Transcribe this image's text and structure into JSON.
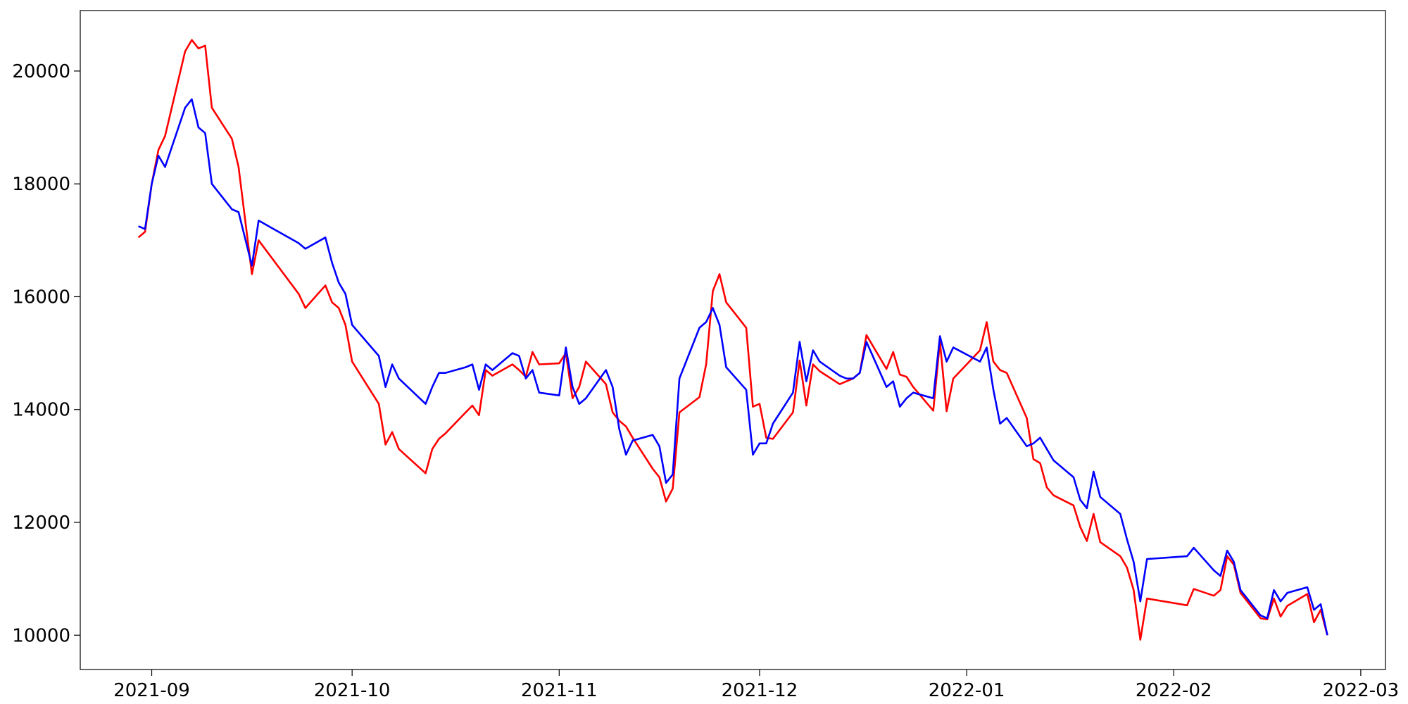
{
  "chart_data": {
    "type": "line",
    "x": [
      18869,
      18870,
      18871,
      18872,
      18873,
      18876,
      18877,
      18878,
      18879,
      18880,
      18883,
      18884,
      18886,
      18887,
      18893,
      18894,
      18897,
      18898,
      18899,
      18900,
      18901,
      18905,
      18906,
      18907,
      18908,
      18912,
      18913,
      18914,
      18915,
      18918,
      18919,
      18920,
      18921,
      18922,
      18925,
      18926,
      18927,
      18928,
      18929,
      18932,
      18933,
      18934,
      18935,
      18936,
      18939,
      18940,
      18941,
      18942,
      18943,
      18946,
      18947,
      18948,
      18949,
      18950,
      18953,
      18954,
      18955,
      18956,
      18957,
      18960,
      18961,
      18962,
      18963,
      18964,
      18967,
      18968,
      18969,
      18970,
      18971,
      18974,
      18975,
      18976,
      18977,
      18978,
      18981,
      18982,
      18983,
      18984,
      18985,
      18988,
      18989,
      18990,
      18991,
      18995,
      18996,
      18997,
      18998,
      18999,
      19002,
      19003,
      19004,
      19005,
      19006,
      19009,
      19010,
      19011,
      19012,
      19013,
      19016,
      19017,
      19018,
      19019,
      19020,
      19026,
      19027,
      19030,
      19031,
      19032,
      19033,
      19034,
      19037,
      19038,
      19039,
      19040,
      19041,
      19044,
      19045,
      19046,
      19047
    ],
    "series": [
      {
        "color": "#ff0000",
        "values": [
          17050,
          17150,
          18000,
          18600,
          18850,
          20350,
          20550,
          20400,
          20450,
          19350,
          18800,
          18300,
          16400,
          17000,
          16050,
          15800,
          16200,
          15900,
          15800,
          15500,
          14850,
          14100,
          13380,
          13600,
          13300,
          12870,
          13300,
          13480,
          13580,
          13950,
          14070,
          13900,
          14700,
          14600,
          14800,
          14700,
          14580,
          15020,
          14800,
          14820,
          15000,
          14200,
          14400,
          14850,
          14450,
          13950,
          13800,
          13700,
          13500,
          12950,
          12800,
          12370,
          12600,
          13950,
          14220,
          14800,
          16100,
          16400,
          15900,
          15450,
          14050,
          14100,
          13500,
          13480,
          13950,
          14870,
          14070,
          14800,
          14680,
          14450,
          14500,
          14550,
          14650,
          15320,
          14720,
          15020,
          14620,
          14580,
          14400,
          13980,
          15200,
          13970,
          14550,
          15050,
          15550,
          14850,
          14700,
          14650,
          13850,
          13120,
          13050,
          12620,
          12480,
          12300,
          11920,
          11670,
          12150,
          11650,
          11400,
          11200,
          10800,
          9920,
          10650,
          10530,
          10820,
          10700,
          10800,
          11400,
          11250,
          10750,
          10300,
          10280,
          10650,
          10330,
          10520,
          10730,
          10230,
          10450,
          10000
        ]
      },
      {
        "color": "#0000ff",
        "values": [
          17250,
          17200,
          18000,
          18500,
          18300,
          19350,
          19500,
          19000,
          18900,
          18000,
          17550,
          17500,
          16550,
          17350,
          16950,
          16850,
          17050,
          16600,
          16250,
          16050,
          15500,
          14950,
          14400,
          14800,
          14550,
          14100,
          14400,
          14650,
          14650,
          14750,
          14800,
          14350,
          14800,
          14700,
          15000,
          14950,
          14550,
          14700,
          14300,
          14250,
          15100,
          14400,
          14100,
          14200,
          14700,
          14400,
          13650,
          13200,
          13450,
          13550,
          13350,
          12700,
          12850,
          14550,
          15450,
          15550,
          15800,
          15500,
          14750,
          14350,
          13200,
          13400,
          13400,
          13750,
          14300,
          15200,
          14500,
          15050,
          14850,
          14600,
          14550,
          14550,
          14650,
          15200,
          14400,
          14500,
          14050,
          14200,
          14300,
          14200,
          15300,
          14850,
          15100,
          14850,
          15100,
          14350,
          13750,
          13850,
          13350,
          13400,
          13500,
          13300,
          13100,
          12800,
          12400,
          12250,
          12900,
          12450,
          12150,
          11700,
          11300,
          10600,
          11350,
          11400,
          11550,
          11150,
          11050,
          11500,
          11300,
          10800,
          10350,
          10300,
          10800,
          10600,
          10750,
          10850,
          10450,
          10550,
          10000
        ]
      }
    ],
    "xlim": [
      18860.3,
      19055.7
    ],
    "xticks": [
      {
        "value": 18871,
        "label": "2021-09"
      },
      {
        "value": 18901,
        "label": "2021-10"
      },
      {
        "value": 18932,
        "label": "2021-11"
      },
      {
        "value": 18962,
        "label": "2021-12"
      },
      {
        "value": 18993,
        "label": "2022-01"
      },
      {
        "value": 19024,
        "label": "2022-02"
      },
      {
        "value": 19052,
        "label": "2022-03"
      }
    ],
    "ylim": [
      9392,
      21072
    ],
    "yticks": [
      10000,
      12000,
      14000,
      16000,
      18000,
      20000
    ]
  }
}
